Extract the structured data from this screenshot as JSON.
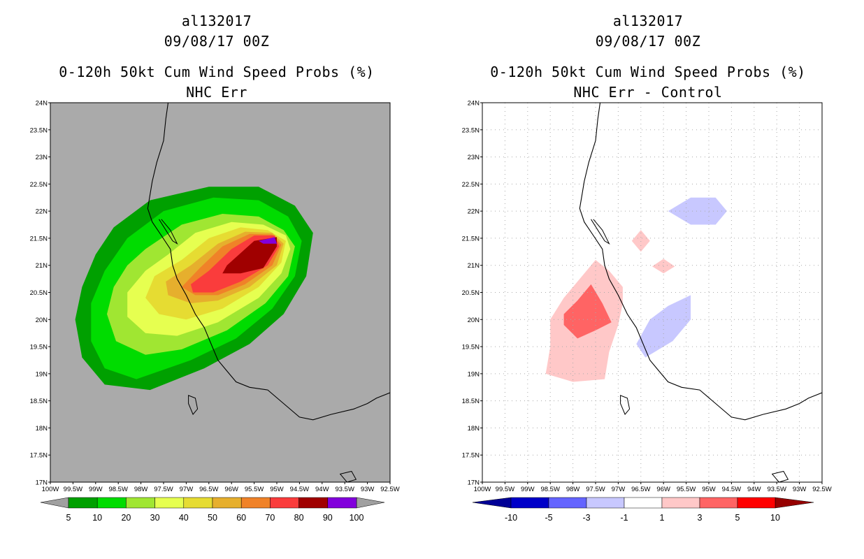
{
  "left_panel": {
    "storm_id": "al132017",
    "datetime": "09/08/17 00Z",
    "title": "0-120h 50kt Cum Wind Speed Probs (%)",
    "subtitle": "NHC Err"
  },
  "right_panel": {
    "storm_id": "al132017",
    "datetime": "09/08/17 00Z",
    "title": "0-120h 50kt Cum Wind Speed Probs (%)",
    "subtitle": "NHC Err - Control"
  },
  "colors": {
    "land_background": "#aaaaaa",
    "coastline": "#000000",
    "gridline": "#aaaaaa"
  },
  "chart_data": [
    {
      "type": "heatmap",
      "title": "0-120h 50kt Cum Wind Speed Probs (%)",
      "subtitle": "NHC Err",
      "xlim": [
        -100,
        -92.5
      ],
      "ylim": [
        17,
        24
      ],
      "xticks": [
        "100W",
        "99.5W",
        "99W",
        "98.5W",
        "98W",
        "97.5W",
        "97W",
        "96.5W",
        "96W",
        "95.5W",
        "95W",
        "94.5W",
        "94W",
        "93.5W",
        "93W",
        "92.5W"
      ],
      "yticks": [
        "17N",
        "17.5N",
        "18N",
        "18.5N",
        "19N",
        "19.5N",
        "20N",
        "20.5N",
        "21N",
        "21.5N",
        "22N",
        "22.5N",
        "23N",
        "23.5N",
        "24N"
      ],
      "grid": false,
      "colorbar": {
        "levels": [
          "5",
          "10",
          "20",
          "30",
          "40",
          "50",
          "60",
          "70",
          "80",
          "90",
          "100"
        ],
        "colors": [
          "#00a000",
          "#00dc00",
          "#a0e632",
          "#e6ff50",
          "#e6dc32",
          "#e6af2d",
          "#f08228",
          "#fa3c3c",
          "#a00000",
          "#8200dc"
        ]
      },
      "contours": [
        {
          "level": 5,
          "color": "#00a000",
          "polygon": [
            [
              -98.6,
              21.7
            ],
            [
              -97.8,
              22.2
            ],
            [
              -96.5,
              22.45
            ],
            [
              -95.4,
              22.45
            ],
            [
              -94.6,
              22.1
            ],
            [
              -94.2,
              21.6
            ],
            [
              -94.35,
              20.8
            ],
            [
              -94.85,
              20.1
            ],
            [
              -95.6,
              19.55
            ],
            [
              -96.6,
              19.1
            ],
            [
              -97.8,
              18.7
            ],
            [
              -98.8,
              18.8
            ],
            [
              -99.3,
              19.3
            ],
            [
              -99.45,
              20.0
            ],
            [
              -99.3,
              20.6
            ],
            [
              -99.0,
              21.2
            ]
          ]
        },
        {
          "level": 10,
          "color": "#00dc00",
          "polygon": [
            [
              -98.3,
              21.5
            ],
            [
              -97.5,
              22.0
            ],
            [
              -96.4,
              22.25
            ],
            [
              -95.4,
              22.2
            ],
            [
              -94.75,
              21.9
            ],
            [
              -94.45,
              21.45
            ],
            [
              -94.6,
              20.8
            ],
            [
              -95.1,
              20.2
            ],
            [
              -95.9,
              19.65
            ],
            [
              -96.9,
              19.25
            ],
            [
              -98.1,
              18.9
            ],
            [
              -98.8,
              19.1
            ],
            [
              -99.1,
              19.6
            ],
            [
              -99.1,
              20.3
            ],
            [
              -98.8,
              20.9
            ]
          ]
        },
        {
          "level": 20,
          "color": "#a0e632",
          "polygon": [
            [
              -97.9,
              21.3
            ],
            [
              -97.1,
              21.75
            ],
            [
              -96.2,
              21.95
            ],
            [
              -95.4,
              21.9
            ],
            [
              -94.85,
              21.65
            ],
            [
              -94.6,
              21.35
            ],
            [
              -94.75,
              20.8
            ],
            [
              -95.25,
              20.3
            ],
            [
              -96.1,
              19.8
            ],
            [
              -97.1,
              19.45
            ],
            [
              -97.9,
              19.35
            ],
            [
              -98.55,
              19.6
            ],
            [
              -98.75,
              20.1
            ],
            [
              -98.6,
              20.6
            ],
            [
              -98.3,
              21.0
            ]
          ]
        },
        {
          "level": 30,
          "color": "#e6ff50",
          "polygon": [
            [
              -97.4,
              21.2
            ],
            [
              -96.8,
              21.6
            ],
            [
              -96.0,
              21.8
            ],
            [
              -95.3,
              21.75
            ],
            [
              -94.8,
              21.55
            ],
            [
              -94.7,
              21.3
            ],
            [
              -94.9,
              20.85
            ],
            [
              -95.4,
              20.4
            ],
            [
              -96.3,
              19.95
            ],
            [
              -97.2,
              19.7
            ],
            [
              -97.9,
              19.75
            ],
            [
              -98.3,
              20.05
            ],
            [
              -98.3,
              20.5
            ],
            [
              -97.9,
              20.9
            ]
          ]
        },
        {
          "level": 40,
          "color": "#e6dc32",
          "polygon": [
            [
              -97.1,
              21.1
            ],
            [
              -96.5,
              21.5
            ],
            [
              -95.8,
              21.7
            ],
            [
              -95.2,
              21.65
            ],
            [
              -94.8,
              21.45
            ],
            [
              -94.9,
              21.05
            ],
            [
              -95.4,
              20.6
            ],
            [
              -96.2,
              20.2
            ],
            [
              -97.0,
              20.0
            ],
            [
              -97.6,
              20.1
            ],
            [
              -97.9,
              20.4
            ],
            [
              -97.7,
              20.8
            ]
          ]
        },
        {
          "level": 50,
          "color": "#e6af2d",
          "polygon": [
            [
              -96.9,
              21.0
            ],
            [
              -96.3,
              21.4
            ],
            [
              -95.7,
              21.62
            ],
            [
              -95.1,
              21.6
            ],
            [
              -94.85,
              21.4
            ],
            [
              -95.0,
              21.0
            ],
            [
              -95.6,
              20.6
            ],
            [
              -96.3,
              20.35
            ],
            [
              -96.9,
              20.3
            ],
            [
              -97.4,
              20.45
            ],
            [
              -97.45,
              20.7
            ]
          ]
        },
        {
          "level": 60,
          "color": "#f08228",
          "polygon": [
            [
              -96.7,
              20.95
            ],
            [
              -96.2,
              21.35
            ],
            [
              -95.6,
              21.58
            ],
            [
              -95.1,
              21.57
            ],
            [
              -94.9,
              21.38
            ],
            [
              -95.1,
              21.0
            ],
            [
              -95.7,
              20.65
            ],
            [
              -96.3,
              20.45
            ],
            [
              -96.8,
              20.45
            ],
            [
              -97.1,
              20.6
            ]
          ]
        },
        {
          "level": 70,
          "color": "#fa3c3c",
          "polygon": [
            [
              -96.5,
              20.9
            ],
            [
              -96.0,
              21.3
            ],
            [
              -95.5,
              21.55
            ],
            [
              -95.05,
              21.55
            ],
            [
              -94.95,
              21.35
            ],
            [
              -95.2,
              21.0
            ],
            [
              -95.8,
              20.7
            ],
            [
              -96.4,
              20.5
            ],
            [
              -96.85,
              20.5
            ],
            [
              -96.9,
              20.65
            ]
          ]
        },
        {
          "level": 80,
          "color": "#a00000",
          "polygon": [
            [
              -96.1,
              21.0
            ],
            [
              -95.5,
              21.45
            ],
            [
              -95.0,
              21.52
            ],
            [
              -95.0,
              21.35
            ],
            [
              -95.3,
              20.95
            ],
            [
              -95.8,
              20.85
            ],
            [
              -96.2,
              20.85
            ]
          ]
        },
        {
          "level": 90,
          "color": "#8200dc",
          "polygon": [
            [
              -95.4,
              21.45
            ],
            [
              -95.05,
              21.52
            ],
            [
              -95.0,
              21.4
            ],
            [
              -95.3,
              21.4
            ]
          ]
        }
      ]
    },
    {
      "type": "heatmap",
      "title": "0-120h 50kt Cum Wind Speed Probs (%)",
      "subtitle": "NHC Err - Control",
      "xlim": [
        -100,
        -92.5
      ],
      "ylim": [
        17,
        24
      ],
      "xticks": [
        "100W",
        "99.5W",
        "99W",
        "98.5W",
        "98W",
        "97.5W",
        "97W",
        "96.5W",
        "96W",
        "95.5W",
        "95W",
        "94.5W",
        "94W",
        "93.5W",
        "93W",
        "92.5W"
      ],
      "yticks": [
        "17N",
        "17.5N",
        "18N",
        "18.5N",
        "19N",
        "19.5N",
        "20N",
        "20.5N",
        "21N",
        "21.5N",
        "22N",
        "22.5N",
        "23N",
        "23.5N",
        "24N"
      ],
      "grid": true,
      "colorbar": {
        "levels": [
          "-10",
          "-5",
          "-3",
          "-1",
          "1",
          "3",
          "5",
          "10"
        ],
        "colors": [
          "#0000c8",
          "#6464ff",
          "#c8c8ff",
          "#ffffff",
          "#ffc8c8",
          "#ff6464",
          "#ff0000"
        ],
        "end_low": "#000096",
        "end_high": "#960000"
      },
      "contours": [
        {
          "level": 1,
          "color": "#ffc8c8",
          "polygon": [
            [
              -97.5,
              21.1
            ],
            [
              -97.2,
              20.9
            ],
            [
              -96.9,
              20.6
            ],
            [
              -96.9,
              20.3
            ],
            [
              -97.0,
              19.9
            ],
            [
              -97.2,
              19.4
            ],
            [
              -97.3,
              18.9
            ],
            [
              -98.0,
              18.85
            ],
            [
              -98.6,
              19.0
            ],
            [
              -98.5,
              19.5
            ],
            [
              -98.5,
              20.0
            ],
            [
              -98.2,
              20.4
            ],
            [
              -97.8,
              20.8
            ]
          ]
        },
        {
          "level": 3,
          "color": "#ff6464",
          "polygon": [
            [
              -97.6,
              20.65
            ],
            [
              -97.35,
              20.3
            ],
            [
              -97.15,
              19.95
            ],
            [
              -97.5,
              19.8
            ],
            [
              -97.9,
              19.65
            ],
            [
              -98.2,
              19.9
            ],
            [
              -98.2,
              20.1
            ],
            [
              -97.9,
              20.35
            ]
          ]
        },
        {
          "level": 1,
          "color": "#ffc8c8",
          "polygon": [
            [
              -96.5,
              21.65
            ],
            [
              -96.3,
              21.45
            ],
            [
              -96.5,
              21.25
            ],
            [
              -96.7,
              21.45
            ]
          ]
        },
        {
          "level": 1,
          "color": "#ffc8c8",
          "polygon": [
            [
              -96.0,
              21.12
            ],
            [
              -95.75,
              20.98
            ],
            [
              -96.0,
              20.85
            ],
            [
              -96.25,
              20.98
            ]
          ]
        },
        {
          "level": -1,
          "color": "#c8c8ff",
          "polygon": [
            [
              -95.9,
              22.0
            ],
            [
              -95.4,
              22.25
            ],
            [
              -94.85,
              22.25
            ],
            [
              -94.6,
              22.0
            ],
            [
              -94.85,
              21.75
            ],
            [
              -95.4,
              21.75
            ]
          ]
        },
        {
          "level": -1,
          "color": "#c8c8ff",
          "polygon": [
            [
              -95.4,
              20.45
            ],
            [
              -95.4,
              20.0
            ],
            [
              -95.8,
              19.6
            ],
            [
              -96.4,
              19.3
            ],
            [
              -96.6,
              19.55
            ],
            [
              -96.3,
              20.0
            ],
            [
              -95.9,
              20.25
            ]
          ]
        }
      ]
    }
  ]
}
